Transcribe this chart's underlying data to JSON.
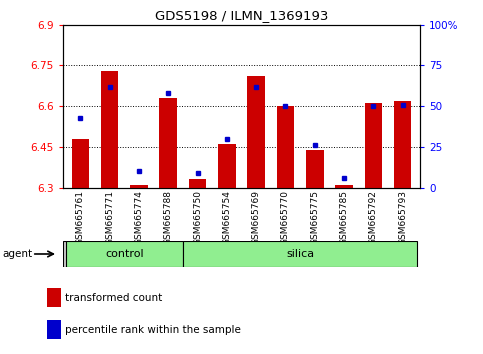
{
  "title": "GDS5198 / ILMN_1369193",
  "samples": [
    "GSM665761",
    "GSM665771",
    "GSM665774",
    "GSM665788",
    "GSM665750",
    "GSM665754",
    "GSM665769",
    "GSM665770",
    "GSM665775",
    "GSM665785",
    "GSM665792",
    "GSM665793"
  ],
  "groups": [
    "control",
    "control",
    "control",
    "control",
    "silica",
    "silica",
    "silica",
    "silica",
    "silica",
    "silica",
    "silica",
    "silica"
  ],
  "transformed_count": [
    6.48,
    6.73,
    6.31,
    6.63,
    6.33,
    6.46,
    6.71,
    6.6,
    6.44,
    6.31,
    6.61,
    6.62
  ],
  "percentile_rank": [
    43,
    62,
    10,
    58,
    9,
    30,
    62,
    50,
    26,
    6,
    50,
    51
  ],
  "ylim": [
    6.3,
    6.9
  ],
  "y_ticks": [
    6.3,
    6.45,
    6.6,
    6.75,
    6.9
  ],
  "right_ylim": [
    0,
    100
  ],
  "right_yticks": [
    0,
    25,
    50,
    75,
    100
  ],
  "right_yticklabels": [
    "0",
    "25",
    "50",
    "75",
    "100%"
  ],
  "bar_color": "#cc0000",
  "dot_color": "#0000cc",
  "group_color": "#90ee90",
  "agent_label": "agent",
  "control_label": "control",
  "silica_label": "silica",
  "legend_bar_label": "transformed count",
  "legend_dot_label": "percentile rank within the sample",
  "ybase": 6.3,
  "grid_lines": [
    6.45,
    6.6,
    6.75
  ],
  "n_control": 4,
  "n_silica": 8
}
